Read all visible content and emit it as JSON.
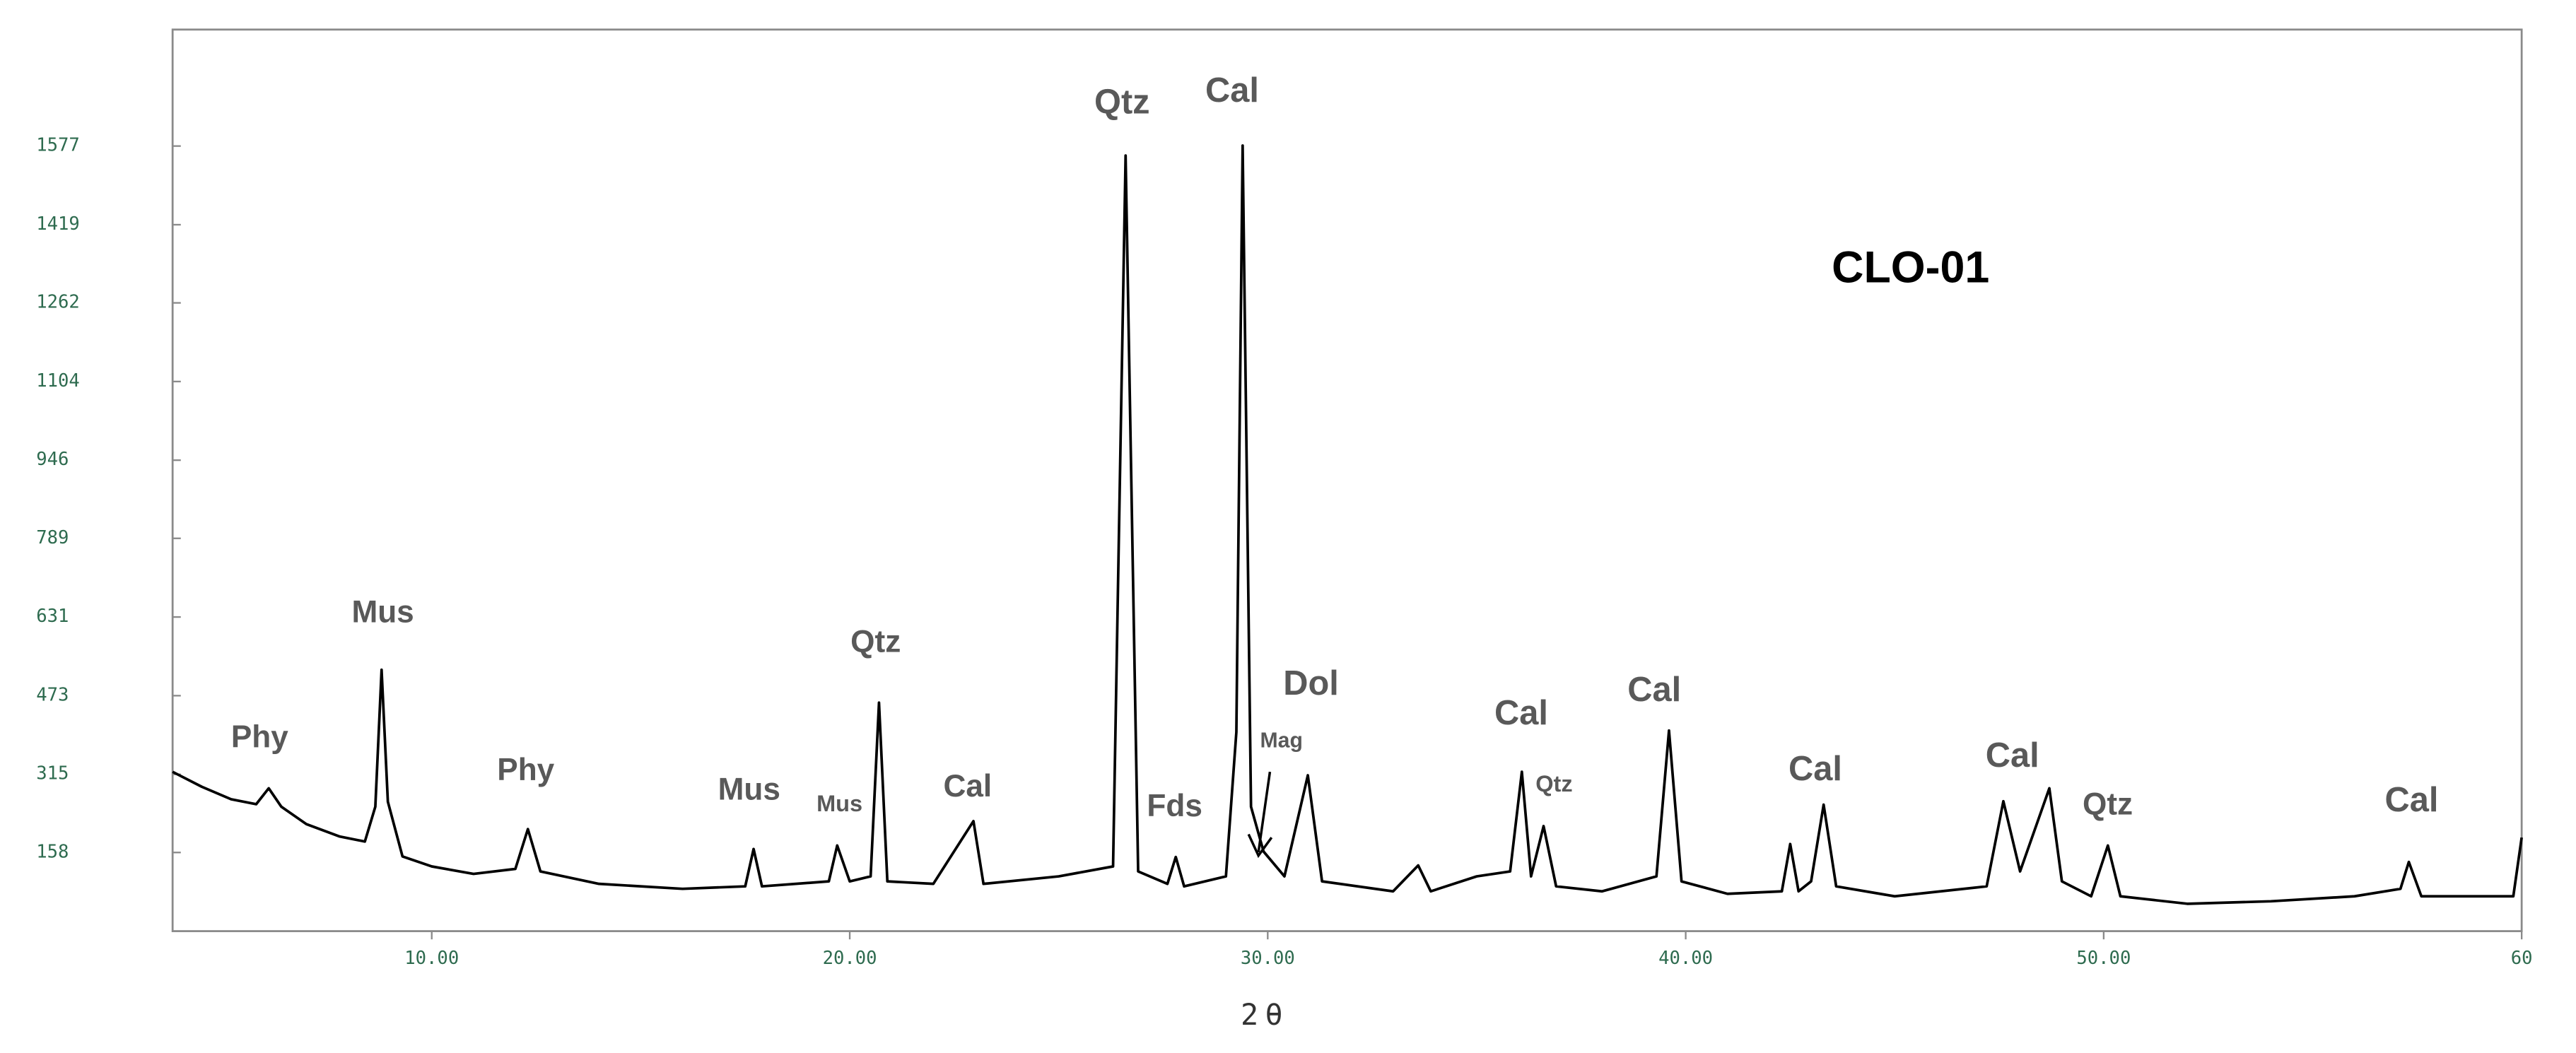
{
  "chart_data": {
    "type": "line",
    "title": "CLO-01",
    "xlabel": "2θ",
    "x": [
      3.8,
      4.5,
      5.2,
      5.8,
      6.1,
      6.4,
      7.0,
      7.8,
      8.4,
      8.65,
      8.8,
      8.95,
      9.3,
      10.0,
      11.0,
      12.0,
      12.3,
      12.6,
      14.0,
      16.0,
      17.5,
      17.7,
      17.9,
      19.5,
      19.7,
      20.0,
      20.5,
      20.7,
      20.9,
      22.0,
      22.96,
      23.2,
      25.0,
      26.3,
      26.6,
      26.9,
      27.6,
      27.8,
      28.0,
      29.0,
      29.25,
      29.4,
      29.6,
      29.9,
      30.4,
      30.96,
      31.3,
      33.0,
      33.6,
      33.9,
      35.0,
      35.8,
      36.08,
      36.3,
      36.6,
      36.9,
      38.0,
      39.3,
      39.6,
      39.9,
      41.0,
      42.3,
      42.5,
      42.7,
      43.0,
      43.3,
      43.6,
      45.0,
      47.2,
      47.6,
      48.0,
      48.7,
      49.0,
      49.7,
      50.1,
      50.4,
      52.0,
      54.0,
      56.0,
      57.1,
      57.3,
      57.6,
      59.8,
      60.0
    ],
    "values": [
      320,
      290,
      265,
      255,
      287,
      250,
      215,
      190,
      180,
      250,
      525,
      260,
      150,
      130,
      115,
      125,
      205,
      120,
      95,
      85,
      90,
      165,
      90,
      100,
      172,
      100,
      110,
      459,
      100,
      95,
      221,
      95,
      110,
      130,
      1558,
      120,
      95,
      149,
      90,
      110,
      400,
      1578,
      250,
      160,
      110,
      313,
      100,
      80,
      132,
      80,
      110,
      120,
      320,
      110,
      211,
      90,
      80,
      110,
      403,
      100,
      75,
      80,
      175,
      80,
      100,
      254,
      90,
      70,
      90,
      261,
      120,
      287,
      100,
      70,
      172,
      70,
      55,
      60,
      70,
      85,
      139,
      70,
      70,
      188
    ],
    "color": "#000000",
    "xlim": [
      3.8,
      60
    ],
    "ylim": [
      0,
      1811
    ],
    "xticks": [
      {
        "value": 10,
        "label": "10.00"
      },
      {
        "value": 20,
        "label": "20.00"
      },
      {
        "value": 30,
        "label": "30.00"
      },
      {
        "value": 40,
        "label": "40.00"
      },
      {
        "value": 50,
        "label": "50.00"
      },
      60
    ],
    "yticks": [
      158,
      315,
      473,
      631,
      789,
      946,
      1104,
      1262,
      1419,
      1577
    ],
    "annotations": [
      "Phy",
      "Mus",
      "Phy",
      "Mus",
      "Mus",
      "Qtz",
      "Cal",
      "Qtz",
      "Fds",
      "Cal",
      "Mag",
      "Dol",
      "Cal",
      "Qtz",
      "Cal",
      "Cal",
      "Cal",
      "Qtz",
      "Cal"
    ]
  }
}
